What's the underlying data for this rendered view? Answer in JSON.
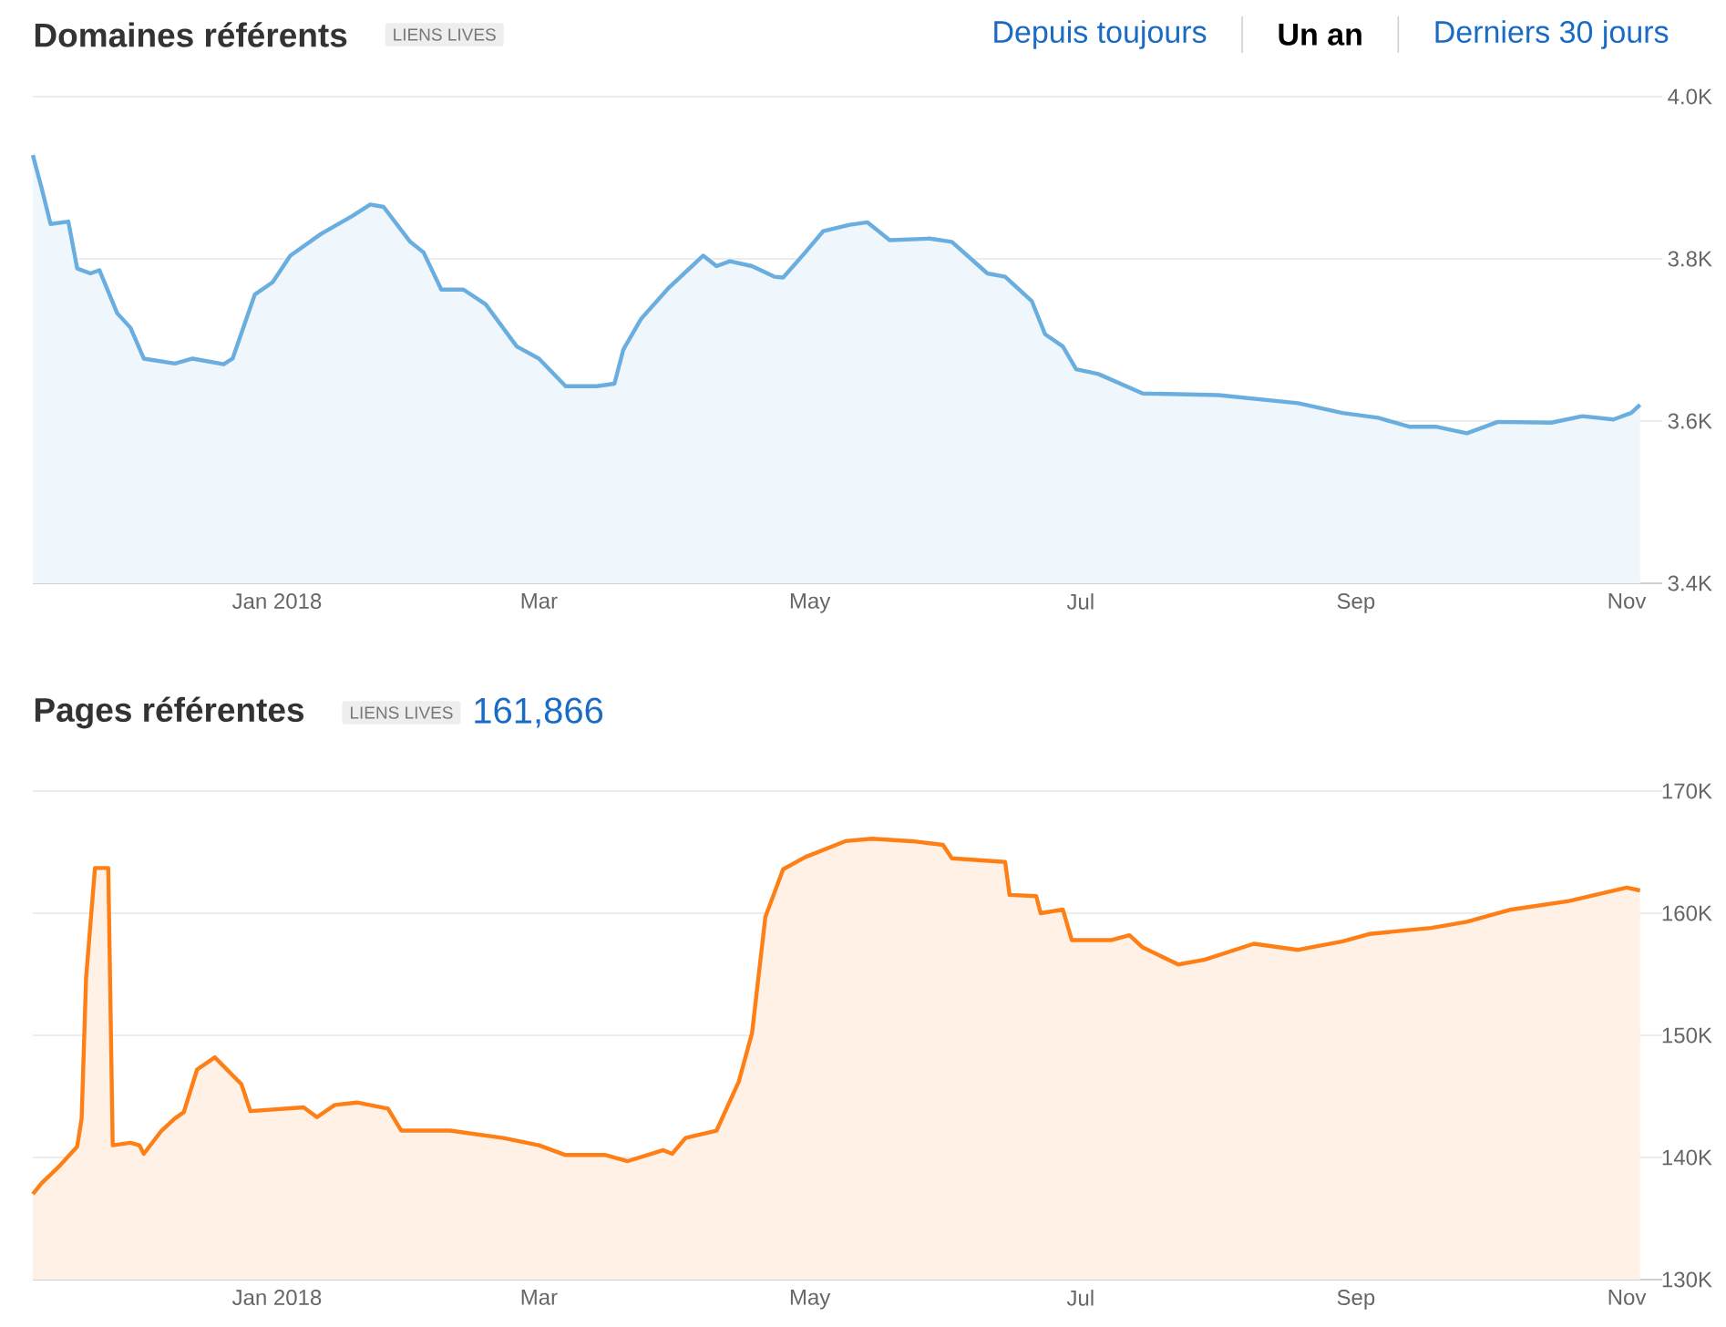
{
  "chart_data": [
    {
      "type": "area",
      "title": "Domaines référents",
      "annotations": [
        "LIENS LIVES",
        "Depuis toujours",
        "Un an",
        "Derniers 30 jours"
      ],
      "x": [
        "2017-11-07",
        "2017-11-09",
        "2017-11-11",
        "2017-11-15",
        "2017-11-17",
        "2017-11-20",
        "2017-11-22",
        "2017-11-26",
        "2017-11-29",
        "2017-12-02",
        "2017-12-09",
        "2017-12-13",
        "2017-12-20",
        "2017-12-22",
        "2017-12-27",
        "2017-12-31",
        "2018-01-04",
        "2018-01-11",
        "2018-01-18",
        "2018-01-22",
        "2018-01-25",
        "2018-01-31",
        "2018-02-03",
        "2018-02-07",
        "2018-02-12",
        "2018-02-17",
        "2018-02-24",
        "2018-03-01",
        "2018-03-07",
        "2018-03-14",
        "2018-03-18",
        "2018-03-20",
        "2018-03-24",
        "2018-03-30",
        "2018-04-07",
        "2018-04-10",
        "2018-04-13",
        "2018-04-18",
        "2018-04-23",
        "2018-04-25",
        "2018-04-30",
        "2018-05-04",
        "2018-05-10",
        "2018-05-14",
        "2018-05-19",
        "2018-05-28",
        "2018-06-02",
        "2018-06-10",
        "2018-06-14",
        "2018-06-20",
        "2018-06-23",
        "2018-06-27",
        "2018-06-30",
        "2018-07-05",
        "2018-07-15",
        "2018-08-01",
        "2018-08-19",
        "2018-08-29",
        "2018-09-06",
        "2018-09-13",
        "2018-09-19",
        "2018-09-26",
        "2018-10-03",
        "2018-10-15",
        "2018-10-22",
        "2018-10-29",
        "2018-11-02",
        "2018-11-04"
      ],
      "series": [
        {
          "color": "#6aaee0",
          "values": [
            3928,
            3887,
            3843,
            3846,
            3788,
            3782,
            3786,
            3733,
            3715,
            3677,
            3671,
            3677,
            3670,
            3677,
            3756,
            3771,
            3804,
            3831,
            3853,
            3867,
            3864,
            3821,
            3808,
            3762,
            3762,
            3744,
            3692,
            3677,
            3643,
            3643,
            3646,
            3688,
            3726,
            3763,
            3804,
            3791,
            3797,
            3791,
            3778,
            3777,
            3808,
            3834,
            3842,
            3845,
            3823,
            3825,
            3821,
            3782,
            3778,
            3748,
            3707,
            3692,
            3664,
            3658,
            3634,
            3632,
            3622,
            3610,
            3604,
            3593,
            3593,
            3585,
            3599,
            3598,
            3606,
            3602,
            3610,
            3620
          ]
        }
      ],
      "xlim": [
        "2017-11-07",
        "2018-11-09"
      ],
      "xticks": [
        {
          "value": "2018-01-01",
          "label": "Jan 2018"
        },
        {
          "value": "2018-03-01",
          "label": "Mar"
        },
        {
          "value": "2018-05-01",
          "label": "May"
        },
        {
          "value": "2018-07-01",
          "label": "Jul"
        },
        {
          "value": "2018-09-01",
          "label": "Sep"
        },
        {
          "value": "2018-11-01",
          "label": "Nov"
        }
      ],
      "ylim": [
        3400,
        4000
      ],
      "yticks": [
        {
          "value": 3400,
          "label": "3.4K"
        },
        {
          "value": 3600,
          "label": "3.6K"
        },
        {
          "value": 3800,
          "label": "3.8K"
        },
        {
          "value": 4000,
          "label": "4.0K"
        }
      ],
      "grid": "y"
    },
    {
      "type": "area",
      "title": "Pages référentes",
      "annotations": [
        "LIENS LIVES",
        "161,866"
      ],
      "x": [
        "2017-11-07",
        "2017-11-09",
        "2017-11-13",
        "2017-11-17",
        "2017-11-18",
        "2017-11-19",
        "2017-11-21",
        "2017-11-24",
        "2017-11-25",
        "2017-11-29",
        "2017-12-01",
        "2017-12-02",
        "2017-12-06",
        "2017-12-09",
        "2017-12-11",
        "2017-12-14",
        "2017-12-18",
        "2017-12-21",
        "2017-12-24",
        "2017-12-26",
        "2018-01-07",
        "2018-01-10",
        "2018-01-14",
        "2018-01-19",
        "2018-01-26",
        "2018-01-29",
        "2018-02-09",
        "2018-02-21",
        "2018-03-01",
        "2018-03-07",
        "2018-03-16",
        "2018-03-21",
        "2018-03-29",
        "2018-03-31",
        "2018-04-03",
        "2018-04-10",
        "2018-04-15",
        "2018-04-18",
        "2018-04-21",
        "2018-04-25",
        "2018-04-30",
        "2018-05-09",
        "2018-05-15",
        "2018-05-24",
        "2018-05-31",
        "2018-06-02",
        "2018-06-14",
        "2018-06-15",
        "2018-06-21",
        "2018-06-22",
        "2018-06-27",
        "2018-06-29",
        "2018-07-08",
        "2018-07-12",
        "2018-07-15",
        "2018-07-23",
        "2018-07-29",
        "2018-08-09",
        "2018-08-19",
        "2018-08-29",
        "2018-09-04",
        "2018-09-18",
        "2018-09-26",
        "2018-10-06",
        "2018-10-19",
        "2018-11-01",
        "2018-11-04"
      ],
      "series": [
        {
          "color": "#ff7f17",
          "values": [
            137000,
            137900,
            139300,
            140900,
            143200,
            154700,
            163700,
            163700,
            141000,
            141200,
            141000,
            140300,
            142200,
            143200,
            143700,
            147200,
            148200,
            147100,
            146000,
            143800,
            144100,
            143300,
            144300,
            144500,
            144000,
            142200,
            142200,
            141600,
            141000,
            140200,
            140200,
            139700,
            140600,
            140300,
            141600,
            142200,
            146200,
            150200,
            159700,
            163600,
            164600,
            165900,
            166100,
            165900,
            165600,
            164500,
            164200,
            161500,
            161400,
            160000,
            160300,
            157800,
            157800,
            158200,
            157200,
            155800,
            156200,
            157500,
            157000,
            157700,
            158300,
            158800,
            159300,
            160300,
            161000,
            162100,
            161866
          ]
        }
      ],
      "xlim": [
        "2017-11-07",
        "2018-11-09"
      ],
      "xticks": [
        {
          "value": "2018-01-01",
          "label": "Jan 2018"
        },
        {
          "value": "2018-03-01",
          "label": "Mar"
        },
        {
          "value": "2018-05-01",
          "label": "May"
        },
        {
          "value": "2018-07-01",
          "label": "Jul"
        },
        {
          "value": "2018-09-01",
          "label": "Sep"
        },
        {
          "value": "2018-11-01",
          "label": "Nov"
        }
      ],
      "ylim": [
        130000,
        170000
      ],
      "yticks": [
        {
          "value": 130000,
          "label": "130K"
        },
        {
          "value": 140000,
          "label": "140K"
        },
        {
          "value": 150000,
          "label": "150K"
        },
        {
          "value": 160000,
          "label": "160K"
        },
        {
          "value": 170000,
          "label": "170K"
        }
      ],
      "grid": "y"
    }
  ]
}
